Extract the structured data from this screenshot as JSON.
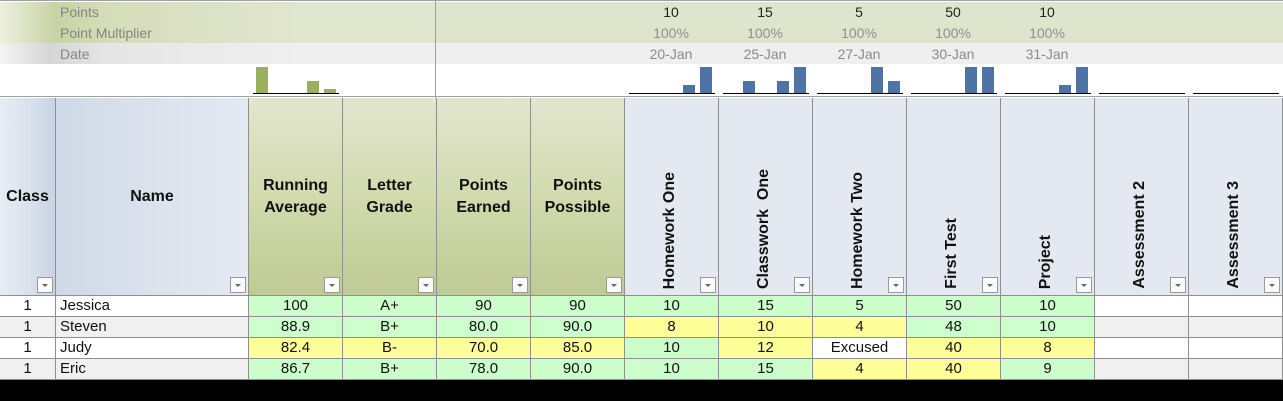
{
  "meta": {
    "labels": {
      "points": "Points",
      "multiplier": "Point Multiplier",
      "date": "Date"
    },
    "assignments": [
      {
        "points": "10",
        "multiplier": "100%",
        "date": "20-Jan"
      },
      {
        "points": "15",
        "multiplier": "100%",
        "date": "25-Jan"
      },
      {
        "points": "5",
        "multiplier": "100%",
        "date": "27-Jan"
      },
      {
        "points": "50",
        "multiplier": "100%",
        "date": "30-Jan"
      },
      {
        "points": "10",
        "multiplier": "100%",
        "date": "31-Jan"
      },
      {
        "points": "",
        "multiplier": "",
        "date": ""
      },
      {
        "points": "",
        "multiplier": "",
        "date": ""
      }
    ]
  },
  "sparklines": {
    "colors": {
      "summary": "#9bb05e",
      "assignments": "#4e73a5"
    },
    "running_average": [
      26,
      0,
      0,
      12,
      4
    ],
    "assignments": [
      [
        0,
        0,
        0,
        8,
        26
      ],
      [
        0,
        12,
        0,
        12,
        26
      ],
      [
        0,
        0,
        0,
        26,
        12
      ],
      [
        0,
        0,
        0,
        26,
        26
      ],
      [
        0,
        0,
        0,
        8,
        26
      ],
      [
        0,
        0,
        0,
        0,
        0
      ],
      [
        0,
        0,
        0,
        0,
        0
      ]
    ]
  },
  "headers": {
    "class": "Class",
    "name": "Name",
    "running_average": [
      "Running",
      "Average"
    ],
    "letter_grade": [
      "Letter",
      "Grade"
    ],
    "points_earned": [
      "Points",
      "Earned"
    ],
    "points_possible": [
      "Points",
      "Possible"
    ],
    "assignments": [
      "Homework One",
      "Classwork  One",
      "Homework Two",
      "First Test",
      "Project",
      "Assessment 2",
      "Assessment 3"
    ]
  },
  "colors": {
    "pass_green": "#ccffcc",
    "warn_yellow": "#ffff99",
    "header_green": "#c8d3a4",
    "header_blue": "#dde4ee"
  },
  "rows": [
    {
      "class": "1",
      "name": "Jessica",
      "avg": "100",
      "grade": "A+",
      "earned": "90",
      "possible": "90",
      "scores": [
        "10",
        "15",
        "5",
        "50",
        "10",
        "",
        ""
      ],
      "summary_status": "g",
      "score_status": [
        "g",
        "g",
        "g",
        "g",
        "g",
        "",
        ""
      ]
    },
    {
      "class": "1",
      "name": "Steven",
      "avg": "88.9",
      "grade": "B+",
      "earned": "80.0",
      "possible": "90.0",
      "scores": [
        "8",
        "10",
        "4",
        "48",
        "10",
        "",
        ""
      ],
      "summary_status": "g",
      "score_status": [
        "y",
        "y",
        "y",
        "g",
        "g",
        "",
        ""
      ]
    },
    {
      "class": "1",
      "name": "Judy",
      "avg": "82.4",
      "grade": "B-",
      "earned": "70.0",
      "possible": "85.0",
      "scores": [
        "10",
        "12",
        "Excused",
        "40",
        "8",
        "",
        ""
      ],
      "summary_status": "y",
      "score_status": [
        "g",
        "y",
        "w",
        "y",
        "y",
        "",
        ""
      ]
    },
    {
      "class": "1",
      "name": "Eric",
      "avg": "86.7",
      "grade": "B+",
      "earned": "78.0",
      "possible": "90.0",
      "scores": [
        "10",
        "15",
        "4",
        "40",
        "9",
        "",
        ""
      ],
      "summary_status": "g",
      "score_status": [
        "g",
        "g",
        "y",
        "y",
        "g",
        "",
        ""
      ]
    }
  ]
}
